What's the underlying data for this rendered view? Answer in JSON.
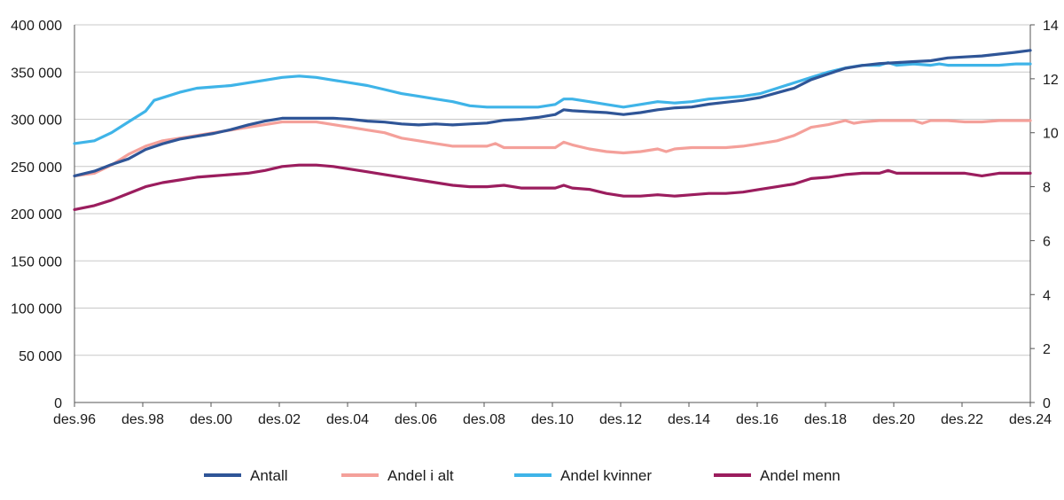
{
  "chart_data": {
    "type": "line",
    "title": "",
    "xlabel": "",
    "ylabel_left": "",
    "ylabel_right": "",
    "ylim_left": [
      0,
      400000
    ],
    "ylim_right": [
      0,
      14
    ],
    "y_ticks_left": [
      "400 000",
      "350 000",
      "300 000",
      "250 000",
      "200 000",
      "150 000",
      "100 000",
      "50 000",
      "0"
    ],
    "y_ticks_right": [
      "14",
      "12",
      "10",
      "8",
      "6",
      "4",
      "2",
      "0"
    ],
    "x_ticks": [
      "des.96",
      "des.98",
      "des.00",
      "des.02",
      "des.04",
      "des.06",
      "des.08",
      "des.10",
      "des.12",
      "des.14",
      "des.16",
      "des.18",
      "des.20",
      "des.22",
      "des.24"
    ],
    "x_range": [
      1996.917,
      2024.917
    ],
    "grid": "horizontal",
    "legend_position": "bottom",
    "series": [
      {
        "name": "Antall",
        "axis": "left",
        "color": "#2f5597",
        "points": [
          [
            1996.917,
            240000
          ],
          [
            1997.5,
            245000
          ],
          [
            1998.0,
            252000
          ],
          [
            1998.5,
            258000
          ],
          [
            1999.0,
            268000
          ],
          [
            1999.5,
            274000
          ],
          [
            2000.0,
            279000
          ],
          [
            2000.5,
            282000
          ],
          [
            2001.0,
            285000
          ],
          [
            2001.5,
            289000
          ],
          [
            2002.0,
            294000
          ],
          [
            2002.5,
            298000
          ],
          [
            2003.0,
            301000
          ],
          [
            2003.5,
            301000
          ],
          [
            2004.0,
            301000
          ],
          [
            2004.5,
            301000
          ],
          [
            2005.0,
            300000
          ],
          [
            2005.5,
            298000
          ],
          [
            2006.0,
            297000
          ],
          [
            2006.5,
            295000
          ],
          [
            2007.0,
            294000
          ],
          [
            2007.5,
            295000
          ],
          [
            2008.0,
            294000
          ],
          [
            2008.5,
            295000
          ],
          [
            2009.0,
            296000
          ],
          [
            2009.5,
            299000
          ],
          [
            2010.0,
            300000
          ],
          [
            2010.5,
            302000
          ],
          [
            2011.0,
            305000
          ],
          [
            2011.25,
            310000
          ],
          [
            2011.5,
            309000
          ],
          [
            2012.0,
            308000
          ],
          [
            2012.5,
            307000
          ],
          [
            2013.0,
            305000
          ],
          [
            2013.5,
            307000
          ],
          [
            2014.0,
            310000
          ],
          [
            2014.5,
            312000
          ],
          [
            2015.0,
            313000
          ],
          [
            2015.5,
            316000
          ],
          [
            2016.0,
            318000
          ],
          [
            2016.5,
            320000
          ],
          [
            2017.0,
            323000
          ],
          [
            2017.5,
            328000
          ],
          [
            2018.0,
            333000
          ],
          [
            2018.5,
            342000
          ],
          [
            2019.0,
            348000
          ],
          [
            2019.5,
            354000
          ],
          [
            2020.0,
            357000
          ],
          [
            2020.5,
            359000
          ],
          [
            2021.0,
            360000
          ],
          [
            2021.5,
            361000
          ],
          [
            2022.0,
            362000
          ],
          [
            2022.5,
            365000
          ],
          [
            2023.0,
            366000
          ],
          [
            2023.5,
            367000
          ],
          [
            2024.0,
            369000
          ],
          [
            2024.5,
            371000
          ],
          [
            2024.917,
            373000
          ]
        ]
      },
      {
        "name": "Andel i alt",
        "axis": "right",
        "color": "#f4a09a",
        "points": [
          [
            1996.917,
            8.4
          ],
          [
            1997.5,
            8.5
          ],
          [
            1998.0,
            8.8
          ],
          [
            1998.5,
            9.2
          ],
          [
            1999.0,
            9.5
          ],
          [
            1999.5,
            9.7
          ],
          [
            2000.0,
            9.8
          ],
          [
            2000.5,
            9.9
          ],
          [
            2001.0,
            10.0
          ],
          [
            2001.5,
            10.1
          ],
          [
            2002.0,
            10.2
          ],
          [
            2002.5,
            10.3
          ],
          [
            2003.0,
            10.4
          ],
          [
            2003.5,
            10.4
          ],
          [
            2004.0,
            10.4
          ],
          [
            2004.5,
            10.3
          ],
          [
            2005.0,
            10.2
          ],
          [
            2005.5,
            10.1
          ],
          [
            2006.0,
            10.0
          ],
          [
            2006.5,
            9.8
          ],
          [
            2007.0,
            9.7
          ],
          [
            2007.5,
            9.6
          ],
          [
            2008.0,
            9.5
          ],
          [
            2008.5,
            9.5
          ],
          [
            2009.0,
            9.5
          ],
          [
            2009.25,
            9.6
          ],
          [
            2009.5,
            9.45
          ],
          [
            2010.0,
            9.45
          ],
          [
            2010.5,
            9.45
          ],
          [
            2011.0,
            9.45
          ],
          [
            2011.25,
            9.65
          ],
          [
            2011.5,
            9.55
          ],
          [
            2012.0,
            9.4
          ],
          [
            2012.5,
            9.3
          ],
          [
            2013.0,
            9.25
          ],
          [
            2013.5,
            9.3
          ],
          [
            2014.0,
            9.4
          ],
          [
            2014.25,
            9.3
          ],
          [
            2014.5,
            9.4
          ],
          [
            2015.0,
            9.45
          ],
          [
            2015.5,
            9.45
          ],
          [
            2016.0,
            9.45
          ],
          [
            2016.5,
            9.5
          ],
          [
            2017.0,
            9.6
          ],
          [
            2017.5,
            9.7
          ],
          [
            2018.0,
            9.9
          ],
          [
            2018.5,
            10.2
          ],
          [
            2019.0,
            10.3
          ],
          [
            2019.5,
            10.45
          ],
          [
            2019.75,
            10.35
          ],
          [
            2020.0,
            10.4
          ],
          [
            2020.5,
            10.45
          ],
          [
            2021.0,
            10.45
          ],
          [
            2021.5,
            10.45
          ],
          [
            2021.75,
            10.35
          ],
          [
            2022.0,
            10.45
          ],
          [
            2022.5,
            10.45
          ],
          [
            2023.0,
            10.4
          ],
          [
            2023.5,
            10.4
          ],
          [
            2024.0,
            10.45
          ],
          [
            2024.917,
            10.45
          ]
        ]
      },
      {
        "name": "Andel kvinner",
        "axis": "right",
        "color": "#3fb4e8",
        "points": [
          [
            1996.917,
            9.6
          ],
          [
            1997.5,
            9.7
          ],
          [
            1998.0,
            10.0
          ],
          [
            1998.5,
            10.4
          ],
          [
            1999.0,
            10.8
          ],
          [
            1999.25,
            11.2
          ],
          [
            1999.5,
            11.3
          ],
          [
            2000.0,
            11.5
          ],
          [
            2000.5,
            11.65
          ],
          [
            2001.0,
            11.7
          ],
          [
            2001.5,
            11.75
          ],
          [
            2002.0,
            11.85
          ],
          [
            2002.5,
            11.95
          ],
          [
            2003.0,
            12.05
          ],
          [
            2003.5,
            12.1
          ],
          [
            2004.0,
            12.05
          ],
          [
            2004.5,
            11.95
          ],
          [
            2005.0,
            11.85
          ],
          [
            2005.5,
            11.75
          ],
          [
            2006.0,
            11.6
          ],
          [
            2006.5,
            11.45
          ],
          [
            2007.0,
            11.35
          ],
          [
            2007.5,
            11.25
          ],
          [
            2008.0,
            11.15
          ],
          [
            2008.5,
            11.0
          ],
          [
            2009.0,
            10.95
          ],
          [
            2009.5,
            10.95
          ],
          [
            2010.0,
            10.95
          ],
          [
            2010.5,
            10.95
          ],
          [
            2011.0,
            11.05
          ],
          [
            2011.25,
            11.25
          ],
          [
            2011.5,
            11.25
          ],
          [
            2012.0,
            11.15
          ],
          [
            2012.5,
            11.05
          ],
          [
            2013.0,
            10.95
          ],
          [
            2013.5,
            11.05
          ],
          [
            2014.0,
            11.15
          ],
          [
            2014.5,
            11.1
          ],
          [
            2015.0,
            11.15
          ],
          [
            2015.5,
            11.25
          ],
          [
            2016.0,
            11.3
          ],
          [
            2016.5,
            11.35
          ],
          [
            2017.0,
            11.45
          ],
          [
            2017.5,
            11.65
          ],
          [
            2018.0,
            11.85
          ],
          [
            2018.5,
            12.05
          ],
          [
            2019.0,
            12.25
          ],
          [
            2019.5,
            12.4
          ],
          [
            2020.0,
            12.5
          ],
          [
            2020.5,
            12.5
          ],
          [
            2020.75,
            12.6
          ],
          [
            2021.0,
            12.5
          ],
          [
            2021.5,
            12.55
          ],
          [
            2022.0,
            12.5
          ],
          [
            2022.25,
            12.55
          ],
          [
            2022.5,
            12.5
          ],
          [
            2023.0,
            12.5
          ],
          [
            2023.5,
            12.5
          ],
          [
            2024.0,
            12.5
          ],
          [
            2024.5,
            12.55
          ],
          [
            2024.917,
            12.55
          ]
        ]
      },
      {
        "name": "Andel menn",
        "axis": "right",
        "color": "#9b1d5e",
        "points": [
          [
            1996.917,
            7.15
          ],
          [
            1997.5,
            7.3
          ],
          [
            1998.0,
            7.5
          ],
          [
            1998.5,
            7.75
          ],
          [
            1999.0,
            8.0
          ],
          [
            1999.5,
            8.15
          ],
          [
            2000.0,
            8.25
          ],
          [
            2000.5,
            8.35
          ],
          [
            2001.0,
            8.4
          ],
          [
            2001.5,
            8.45
          ],
          [
            2002.0,
            8.5
          ],
          [
            2002.5,
            8.6
          ],
          [
            2003.0,
            8.75
          ],
          [
            2003.5,
            8.8
          ],
          [
            2004.0,
            8.8
          ],
          [
            2004.5,
            8.75
          ],
          [
            2005.0,
            8.65
          ],
          [
            2005.5,
            8.55
          ],
          [
            2006.0,
            8.45
          ],
          [
            2006.5,
            8.35
          ],
          [
            2007.0,
            8.25
          ],
          [
            2007.5,
            8.15
          ],
          [
            2008.0,
            8.05
          ],
          [
            2008.5,
            8.0
          ],
          [
            2009.0,
            8.0
          ],
          [
            2009.5,
            8.05
          ],
          [
            2010.0,
            7.95
          ],
          [
            2010.5,
            7.95
          ],
          [
            2011.0,
            7.95
          ],
          [
            2011.25,
            8.05
          ],
          [
            2011.5,
            7.95
          ],
          [
            2012.0,
            7.9
          ],
          [
            2012.5,
            7.75
          ],
          [
            2013.0,
            7.65
          ],
          [
            2013.5,
            7.65
          ],
          [
            2014.0,
            7.7
          ],
          [
            2014.5,
            7.65
          ],
          [
            2015.0,
            7.7
          ],
          [
            2015.5,
            7.75
          ],
          [
            2016.0,
            7.75
          ],
          [
            2016.5,
            7.8
          ],
          [
            2017.0,
            7.9
          ],
          [
            2017.5,
            8.0
          ],
          [
            2018.0,
            8.1
          ],
          [
            2018.5,
            8.3
          ],
          [
            2019.0,
            8.35
          ],
          [
            2019.5,
            8.45
          ],
          [
            2020.0,
            8.5
          ],
          [
            2020.5,
            8.5
          ],
          [
            2020.75,
            8.6
          ],
          [
            2021.0,
            8.5
          ],
          [
            2021.5,
            8.5
          ],
          [
            2022.0,
            8.5
          ],
          [
            2022.5,
            8.5
          ],
          [
            2023.0,
            8.5
          ],
          [
            2023.5,
            8.4
          ],
          [
            2024.0,
            8.5
          ],
          [
            2024.917,
            8.5
          ]
        ]
      }
    ]
  }
}
